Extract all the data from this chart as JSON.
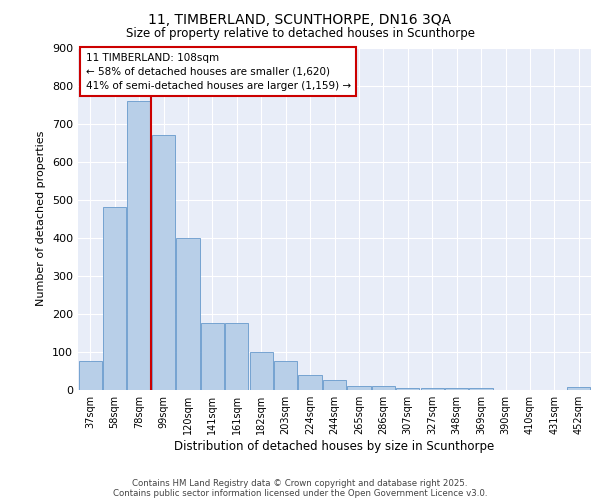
{
  "title_line1": "11, TIMBERLAND, SCUNTHORPE, DN16 3QA",
  "title_line2": "Size of property relative to detached houses in Scunthorpe",
  "xlabel": "Distribution of detached houses by size in Scunthorpe",
  "ylabel": "Number of detached properties",
  "categories": [
    "37sqm",
    "58sqm",
    "78sqm",
    "99sqm",
    "120sqm",
    "141sqm",
    "161sqm",
    "182sqm",
    "203sqm",
    "224sqm",
    "244sqm",
    "265sqm",
    "286sqm",
    "307sqm",
    "327sqm",
    "348sqm",
    "369sqm",
    "390sqm",
    "410sqm",
    "431sqm",
    "452sqm"
  ],
  "values": [
    75,
    480,
    760,
    670,
    400,
    175,
    175,
    100,
    75,
    40,
    25,
    10,
    10,
    5,
    5,
    5,
    5,
    0,
    0,
    0,
    8
  ],
  "bar_color": "#b8cfe8",
  "bar_edge_color": "#6699cc",
  "vline_x": 2.5,
  "vline_color": "#cc0000",
  "annotation_text": "11 TIMBERLAND: 108sqm\n← 58% of detached houses are smaller (1,620)\n41% of semi-detached houses are larger (1,159) →",
  "annotation_box_edgecolor": "#cc0000",
  "ylim": [
    0,
    900
  ],
  "yticks": [
    0,
    100,
    200,
    300,
    400,
    500,
    600,
    700,
    800,
    900
  ],
  "background_color": "#e8edf8",
  "footer_line1": "Contains HM Land Registry data © Crown copyright and database right 2025.",
  "footer_line2": "Contains public sector information licensed under the Open Government Licence v3.0.",
  "figsize": [
    6.0,
    5.0
  ],
  "dpi": 100
}
